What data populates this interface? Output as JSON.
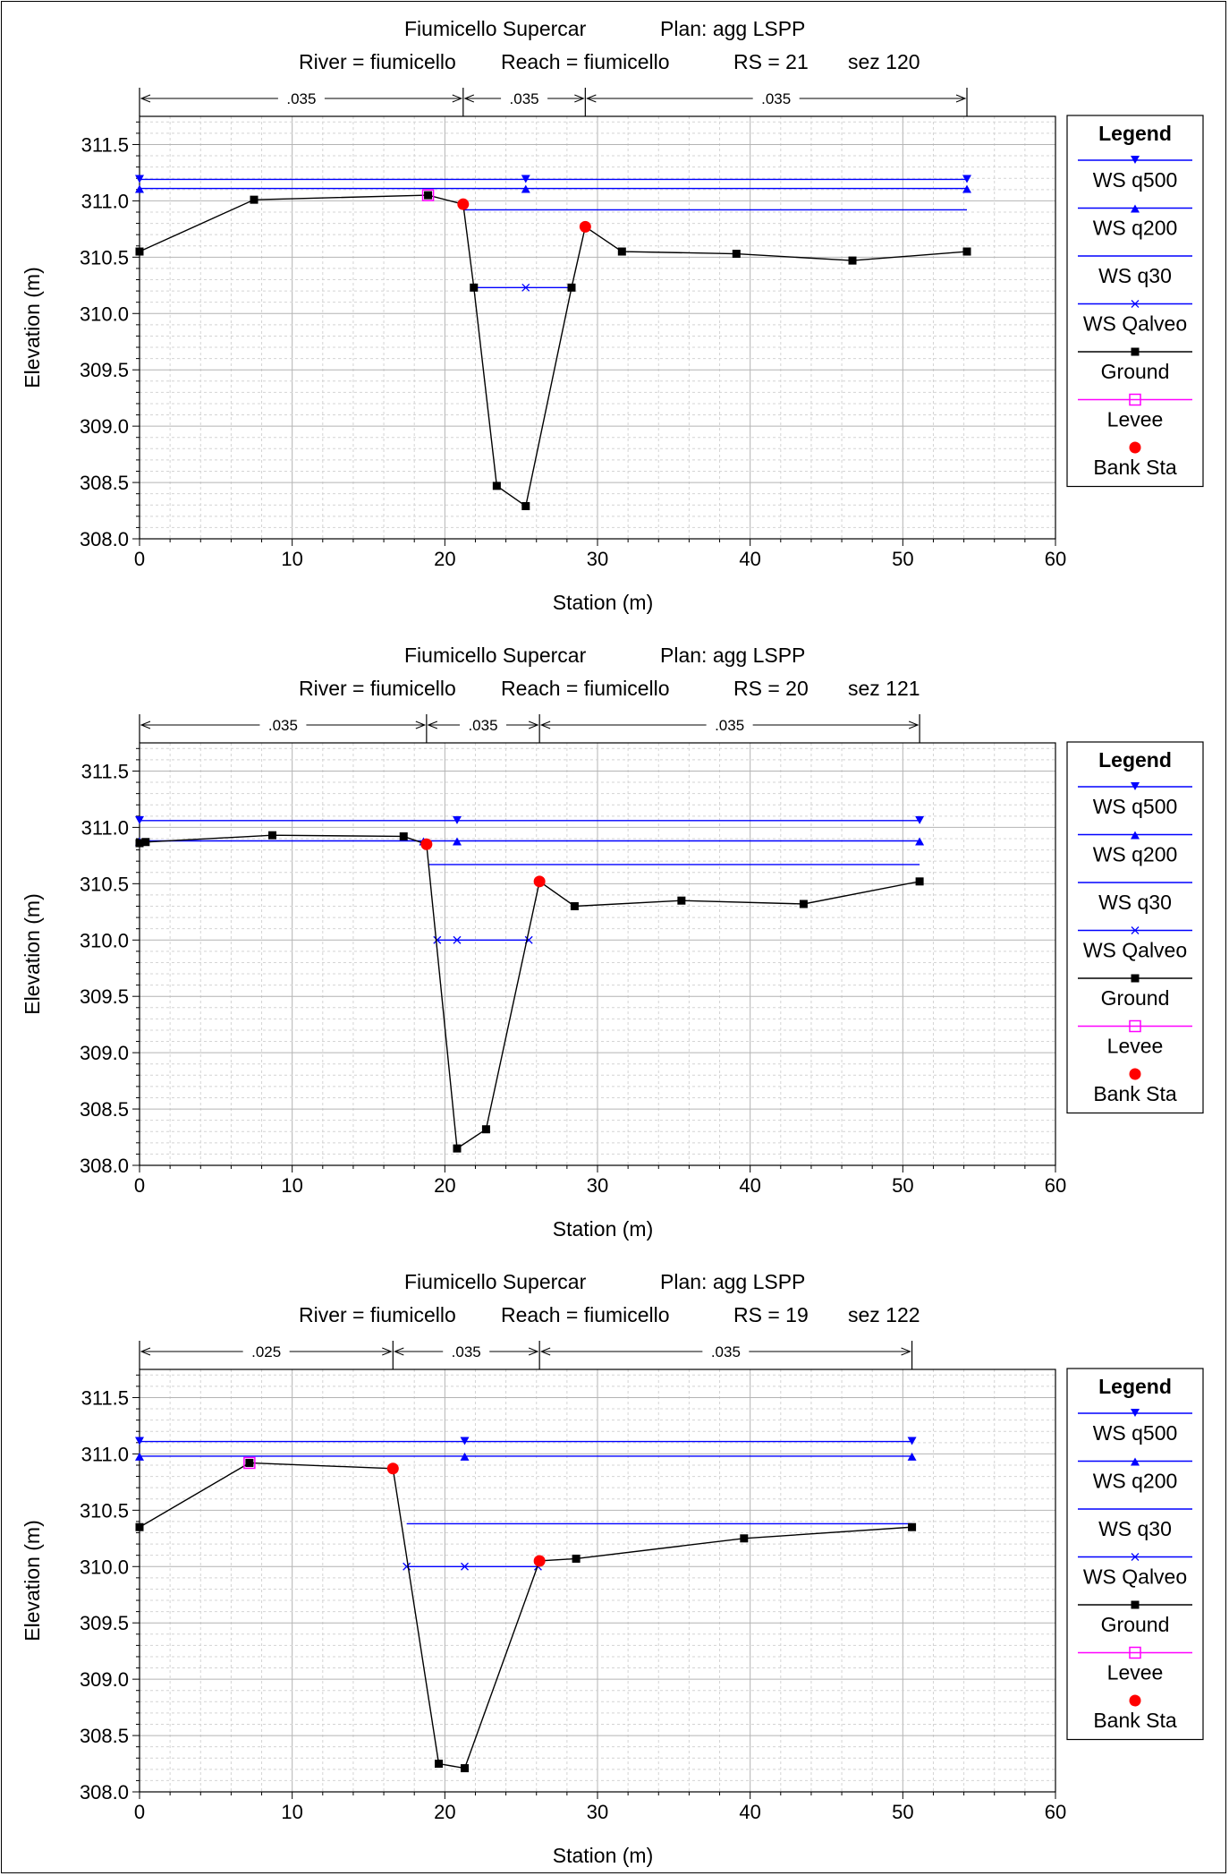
{
  "legend_title": "Legend",
  "chart_data": [
    {
      "type": "line",
      "title_line1_left": "Fiumicello Supercar",
      "title_line1_right": "Plan: agg LSPP",
      "title_line2": [
        "River = fiumicello",
        "Reach = fiumicello",
        "RS = 21",
        "sez 120"
      ],
      "xlabel": "Station (m)",
      "ylabel": "Elevation (m)",
      "xlim": [
        0,
        60
      ],
      "ylim": [
        308.0,
        311.75
      ],
      "xticks": [
        0,
        10,
        20,
        30,
        40,
        50,
        60
      ],
      "yticks": [
        308.0,
        308.5,
        309.0,
        309.5,
        310.0,
        310.5,
        311.0,
        311.5
      ],
      "grid": true,
      "legend_position": "right",
      "manning": [
        {
          "from": 0,
          "to": 21.2,
          "n": ".035"
        },
        {
          "from": 21.2,
          "to": 29.2,
          "n": ".035"
        },
        {
          "from": 29.2,
          "to": 54.2,
          "n": ".035"
        }
      ],
      "series": [
        {
          "name": "WS q500",
          "color": "#0000ff",
          "marker": "tri-down",
          "x": [
            0,
            25.3,
            54.2
          ],
          "y": [
            311.19,
            311.19,
            311.19
          ]
        },
        {
          "name": "WS q200",
          "color": "#0000ff",
          "marker": "tri-up",
          "x": [
            0,
            25.3,
            54.2
          ],
          "y": [
            311.11,
            311.11,
            311.11
          ]
        },
        {
          "name": "WS q30",
          "color": "#0000ff",
          "marker": "none",
          "x": [
            21.2,
            54.2
          ],
          "y": [
            310.92,
            310.92
          ]
        },
        {
          "name": "WS Qalveo",
          "color": "#0000ff",
          "marker": "x",
          "x": [
            21.9,
            25.3,
            28.3
          ],
          "y": [
            310.23,
            310.23,
            310.23
          ]
        },
        {
          "name": "Ground",
          "color": "#000000",
          "marker": "square",
          "x": [
            0,
            7.5,
            18.9,
            21.2,
            21.9,
            23.4,
            25.3,
            28.3,
            29.2,
            31.6,
            39.1,
            46.7,
            54.2
          ],
          "y": [
            310.55,
            311.01,
            311.05,
            310.97,
            310.23,
            308.47,
            308.29,
            310.23,
            310.77,
            310.55,
            310.53,
            310.47,
            310.55
          ]
        },
        {
          "name": "Levee",
          "color": "#ff00ff",
          "marker": "open-square",
          "x": [
            18.9
          ],
          "y": [
            311.05
          ]
        },
        {
          "name": "Bank Sta",
          "color": "#ff0000",
          "marker": "dot",
          "x": [
            21.2,
            29.2
          ],
          "y": [
            310.97,
            310.77
          ]
        }
      ]
    },
    {
      "type": "line",
      "title_line1_left": "Fiumicello Supercar",
      "title_line1_right": "Plan: agg LSPP",
      "title_line2": [
        "River = fiumicello",
        "Reach = fiumicello",
        "RS = 20",
        "sez 121"
      ],
      "xlabel": "Station (m)",
      "ylabel": "Elevation (m)",
      "xlim": [
        0,
        60
      ],
      "ylim": [
        308.0,
        311.75
      ],
      "xticks": [
        0,
        10,
        20,
        30,
        40,
        50,
        60
      ],
      "yticks": [
        308.0,
        308.5,
        309.0,
        309.5,
        310.0,
        310.5,
        311.0,
        311.5
      ],
      "grid": true,
      "legend_position": "right",
      "manning": [
        {
          "from": 0,
          "to": 18.8,
          "n": ".035"
        },
        {
          "from": 18.8,
          "to": 26.2,
          "n": ".035"
        },
        {
          "from": 26.2,
          "to": 51.1,
          "n": ".035"
        }
      ],
      "series": [
        {
          "name": "WS q500",
          "color": "#0000ff",
          "marker": "tri-down",
          "x": [
            0,
            20.8,
            51.1
          ],
          "y": [
            311.06,
            311.06,
            311.06
          ]
        },
        {
          "name": "WS q200",
          "color": "#0000ff",
          "marker": "tri-up",
          "x": [
            0,
            18.6,
            20.8,
            51.1
          ],
          "y": [
            310.88,
            310.88,
            310.88,
            310.88
          ]
        },
        {
          "name": "WS q30",
          "color": "#0000ff",
          "marker": "none",
          "x": [
            18.9,
            51.1
          ],
          "y": [
            310.67,
            310.67
          ]
        },
        {
          "name": "WS Qalveo",
          "color": "#0000ff",
          "marker": "x",
          "x": [
            19.5,
            20.8,
            25.5
          ],
          "y": [
            310.0,
            310.0,
            310.0
          ]
        },
        {
          "name": "Ground",
          "color": "#000000",
          "marker": "square",
          "x": [
            0,
            0.4,
            8.7,
            17.3,
            18.8,
            20.8,
            22.7,
            26.2,
            28.5,
            35.5,
            43.5,
            51.1
          ],
          "y": [
            310.86,
            310.87,
            310.93,
            310.92,
            310.85,
            308.15,
            308.32,
            310.52,
            310.3,
            310.35,
            310.32,
            310.52
          ]
        },
        {
          "name": "Levee",
          "color": "#ff00ff",
          "marker": "open-square",
          "x": [],
          "y": []
        },
        {
          "name": "Bank Sta",
          "color": "#ff0000",
          "marker": "dot",
          "x": [
            18.8,
            26.2
          ],
          "y": [
            310.85,
            310.52
          ]
        }
      ]
    },
    {
      "type": "line",
      "title_line1_left": "Fiumicello Supercar",
      "title_line1_right": "Plan: agg LSPP",
      "title_line2": [
        "River = fiumicello",
        "Reach = fiumicello",
        "RS = 19",
        "sez 122"
      ],
      "xlabel": "Station (m)",
      "ylabel": "Elevation (m)",
      "xlim": [
        0,
        60
      ],
      "ylim": [
        308.0,
        311.75
      ],
      "xticks": [
        0,
        10,
        20,
        30,
        40,
        50,
        60
      ],
      "yticks": [
        308.0,
        308.5,
        309.0,
        309.5,
        310.0,
        310.5,
        311.0,
        311.5
      ],
      "grid": true,
      "legend_position": "right",
      "manning": [
        {
          "from": 0,
          "to": 16.6,
          "n": ".025"
        },
        {
          "from": 16.6,
          "to": 26.2,
          "n": ".035"
        },
        {
          "from": 26.2,
          "to": 50.6,
          "n": ".035"
        }
      ],
      "series": [
        {
          "name": "WS q500",
          "color": "#0000ff",
          "marker": "tri-down",
          "x": [
            0,
            21.3,
            50.6
          ],
          "y": [
            311.11,
            311.11,
            311.11
          ]
        },
        {
          "name": "WS q200",
          "color": "#0000ff",
          "marker": "tri-up",
          "x": [
            0,
            21.3,
            50.6
          ],
          "y": [
            310.98,
            310.98,
            310.98
          ]
        },
        {
          "name": "WS q30",
          "color": "#0000ff",
          "marker": "none",
          "x": [
            17.5,
            50.6
          ],
          "y": [
            310.38,
            310.38
          ]
        },
        {
          "name": "WS Qalveo",
          "color": "#0000ff",
          "marker": "x",
          "x": [
            17.5,
            21.3,
            26.1
          ],
          "y": [
            310.0,
            310.0,
            310.0
          ]
        },
        {
          "name": "Ground",
          "color": "#000000",
          "marker": "square",
          "x": [
            0,
            7.2,
            16.6,
            19.6,
            21.3,
            26.2,
            28.6,
            39.6,
            50.6
          ],
          "y": [
            310.35,
            310.92,
            310.87,
            308.25,
            308.21,
            310.05,
            310.07,
            310.25,
            310.35
          ]
        },
        {
          "name": "Levee",
          "color": "#ff00ff",
          "marker": "open-square",
          "x": [
            7.2
          ],
          "y": [
            310.92
          ]
        },
        {
          "name": "Bank Sta",
          "color": "#ff0000",
          "marker": "dot",
          "x": [
            16.6,
            26.2
          ],
          "y": [
            310.87,
            310.05
          ]
        }
      ]
    }
  ]
}
